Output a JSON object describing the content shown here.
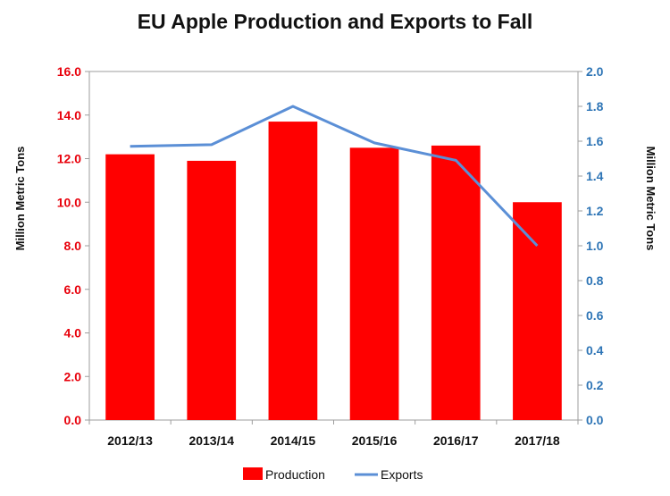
{
  "chart_data": {
    "type": "bar+line",
    "title": "EU Apple Production and Exports to Fall",
    "categories": [
      "2012/13",
      "2013/14",
      "2014/15",
      "2015/16",
      "2016/17",
      "2017/18"
    ],
    "series": [
      {
        "name": "Production",
        "type": "bar",
        "axis": "left",
        "color": "#ff0000",
        "values": [
          12.2,
          11.9,
          13.7,
          12.5,
          12.6,
          10.0
        ]
      },
      {
        "name": "Exports",
        "type": "line",
        "axis": "right",
        "color": "#5b8fd6",
        "values": [
          1.57,
          1.58,
          1.8,
          1.59,
          1.49,
          1.0
        ]
      }
    ],
    "ylabel_left": "Million Metric Tons",
    "ylabel_right": "Million Metric Tons",
    "ylim_left": [
      0,
      16
    ],
    "ylim_right": [
      0,
      2
    ],
    "yticks_left": [
      "0.0",
      "2.0",
      "4.0",
      "6.0",
      "8.0",
      "10.0",
      "12.0",
      "14.0",
      "16.0"
    ],
    "yticks_right": [
      "0.0",
      "0.2",
      "0.4",
      "0.6",
      "0.8",
      "1.0",
      "1.2",
      "1.4",
      "1.6",
      "1.8",
      "2.0"
    ],
    "left_axis_color": "#e8000b",
    "right_axis_color": "#2e75b6",
    "grid": false,
    "legend_position": "bottom"
  }
}
